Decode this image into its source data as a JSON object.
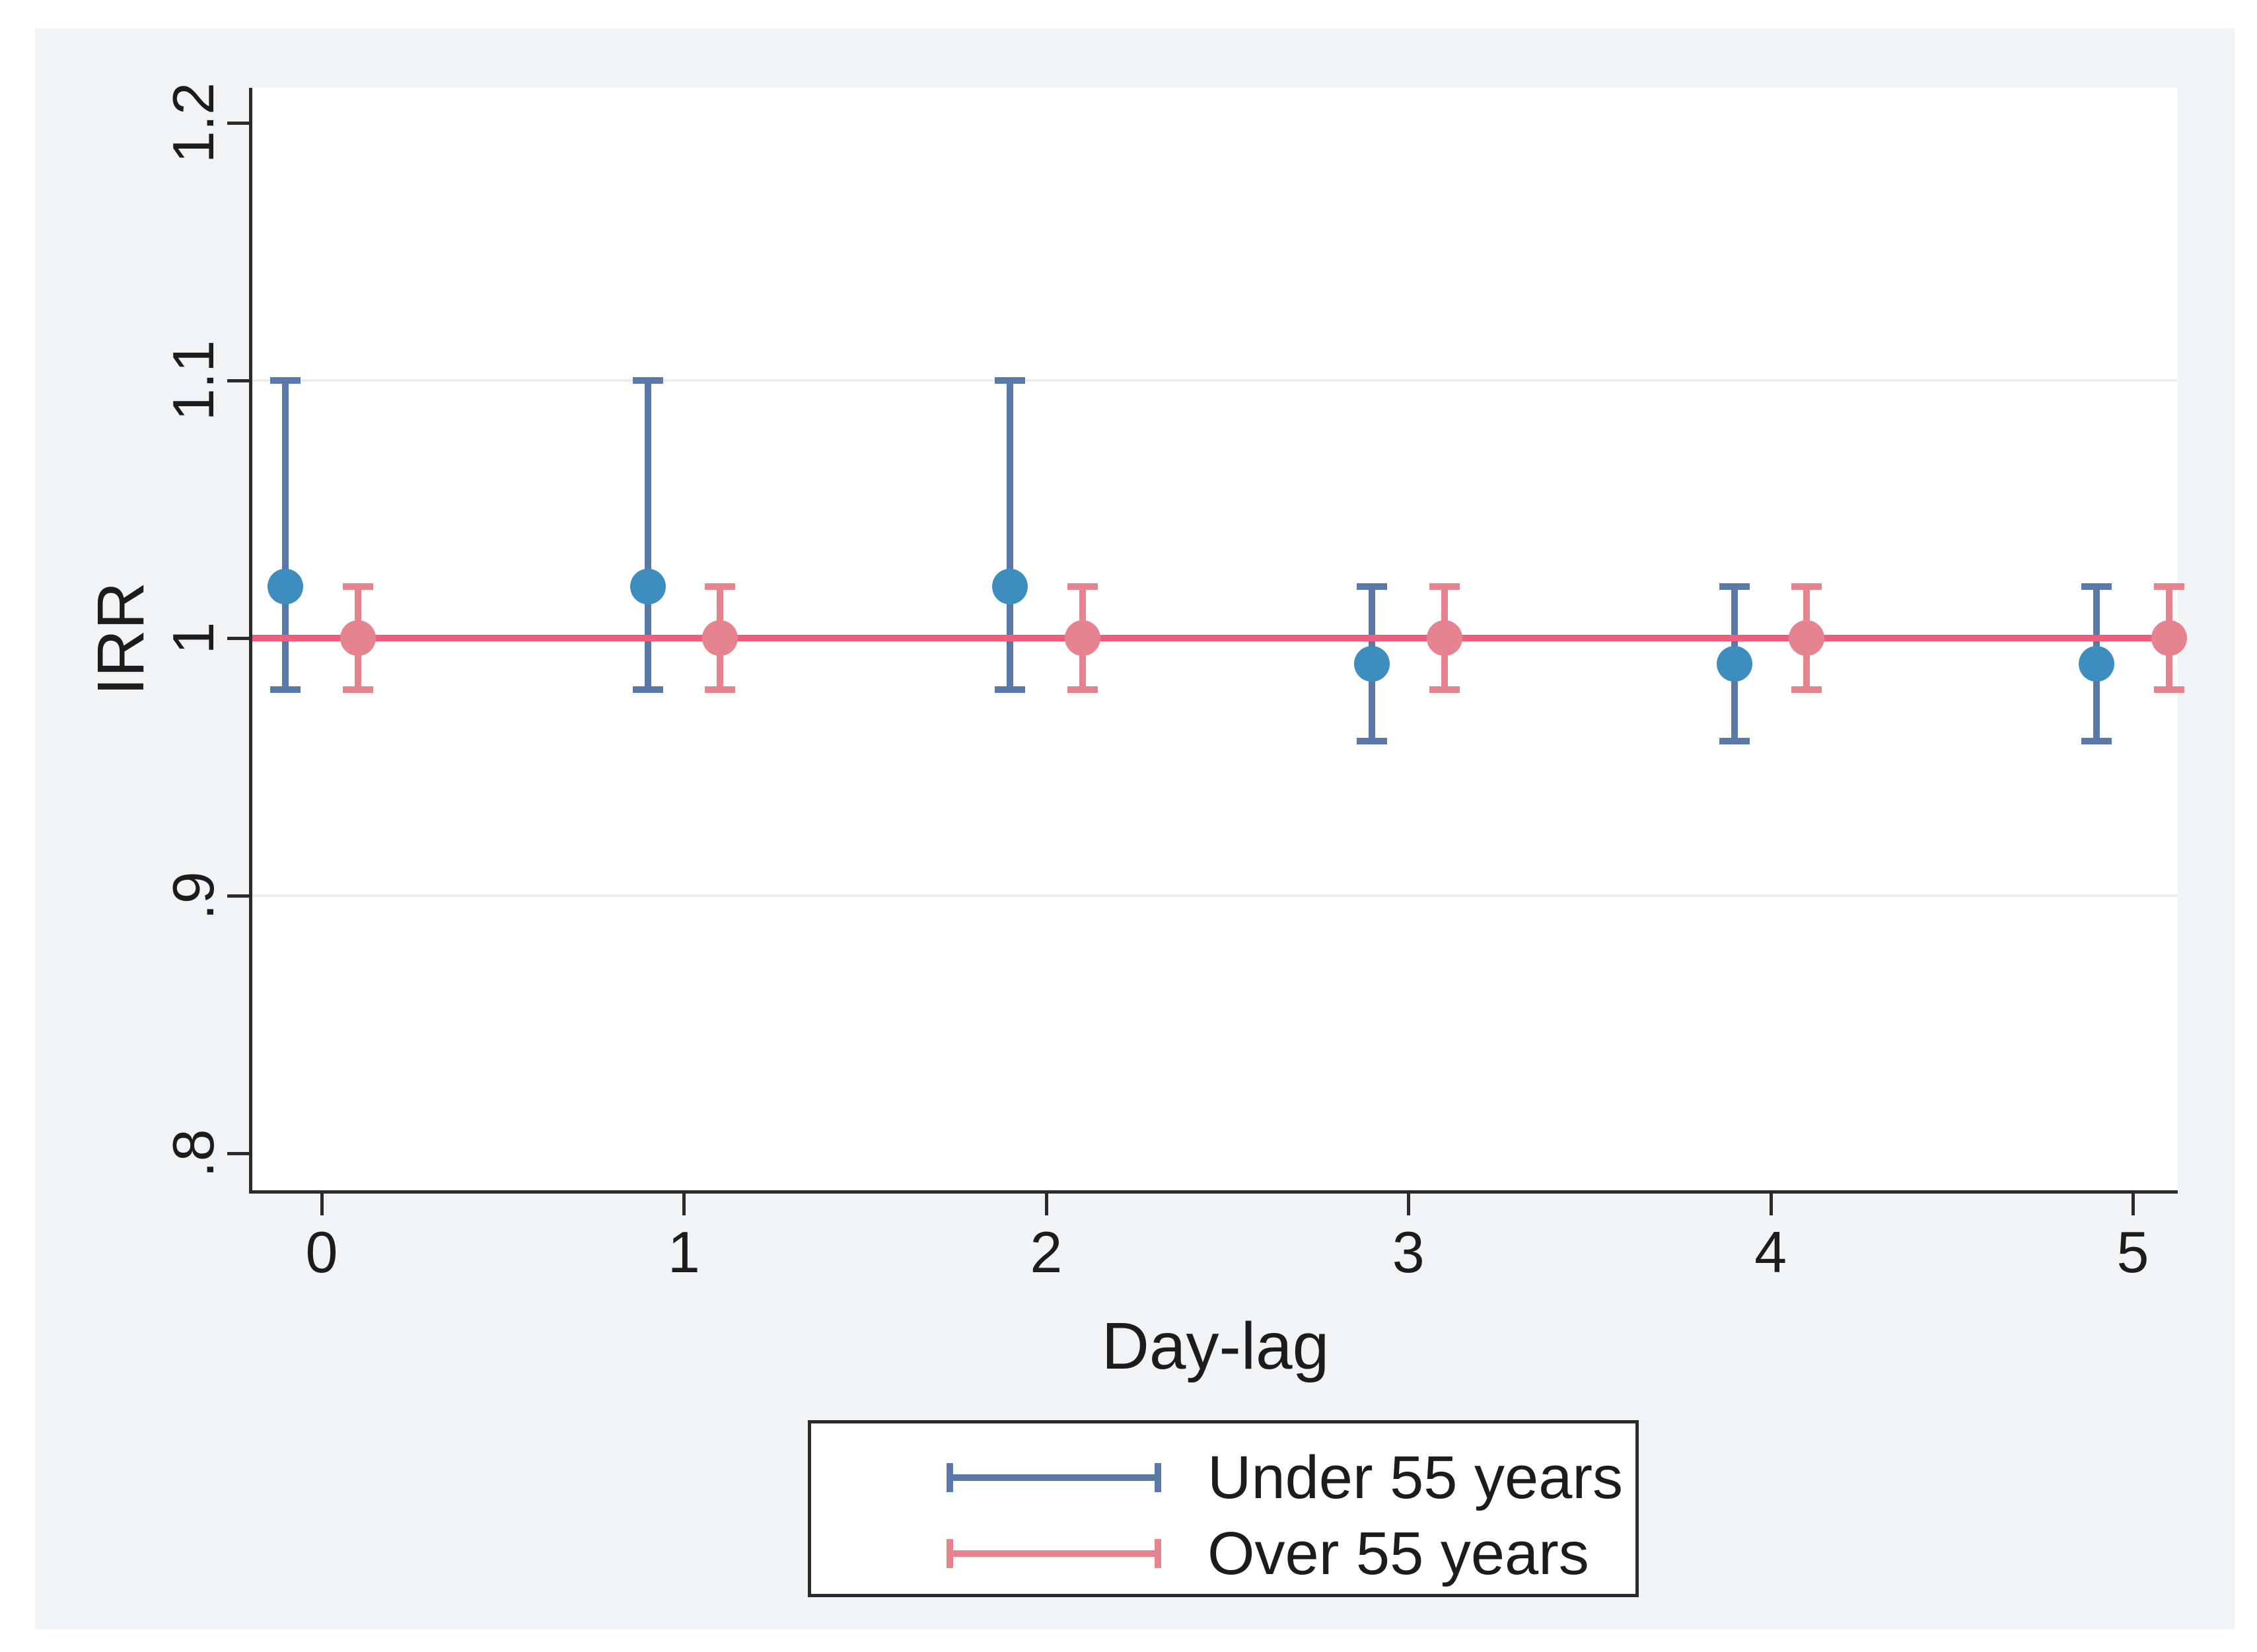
{
  "chart_data": {
    "type": "scatter",
    "subtype": "error-bar",
    "title": "",
    "xlabel": "Day-lag",
    "ylabel": "IRR",
    "x_ticks": [
      {
        "label": "0",
        "value": 0
      },
      {
        "label": "1",
        "value": 1
      },
      {
        "label": "2",
        "value": 2
      },
      {
        "label": "3",
        "value": 3
      },
      {
        "label": "4",
        "value": 4
      },
      {
        "label": "5",
        "value": 5
      }
    ],
    "y_ticks": [
      {
        "label": "1.2",
        "value": 1.2
      },
      {
        "label": "1.1",
        "value": 1.1
      },
      {
        "label": "1",
        "value": 1.0
      },
      {
        "label": ".9",
        "value": 0.9
      },
      {
        "label": ".8",
        "value": 0.8
      }
    ],
    "xlim": [
      -0.19,
      5.12
    ],
    "ylim": [
      0.786,
      1.214
    ],
    "grid": "horizontal-at-1.1-and-0.9",
    "gridline_values": [
      1.1,
      0.9
    ],
    "legend_position": "bottom-center-boxed",
    "ref_line": {
      "y": 1.0,
      "color": "#ef5e7c"
    },
    "series": [
      {
        "name": "Under 55 years",
        "marker_color": "#3d8dbe",
        "bar_color": "#5b79a8",
        "x_offset": -0.1,
        "points": [
          {
            "x": 0,
            "y": 1.02,
            "lo": 0.98,
            "hi": 1.1
          },
          {
            "x": 1,
            "y": 1.02,
            "lo": 0.98,
            "hi": 1.1
          },
          {
            "x": 2,
            "y": 1.02,
            "lo": 0.98,
            "hi": 1.1
          },
          {
            "x": 3,
            "y": 0.99,
            "lo": 0.96,
            "hi": 1.02
          },
          {
            "x": 4,
            "y": 0.99,
            "lo": 0.96,
            "hi": 1.02
          },
          {
            "x": 5,
            "y": 0.99,
            "lo": 0.96,
            "hi": 1.02
          }
        ]
      },
      {
        "name": "Over 55 years",
        "marker_color": "#e5838e",
        "bar_color": "#e5838e",
        "x_offset": 0.1,
        "points": [
          {
            "x": 0,
            "y": 1.0,
            "lo": 0.98,
            "hi": 1.02
          },
          {
            "x": 1,
            "y": 1.0,
            "lo": 0.98,
            "hi": 1.02
          },
          {
            "x": 2,
            "y": 1.0,
            "lo": 0.98,
            "hi": 1.02
          },
          {
            "x": 3,
            "y": 1.0,
            "lo": 0.98,
            "hi": 1.02
          },
          {
            "x": 4,
            "y": 1.0,
            "lo": 0.98,
            "hi": 1.02
          },
          {
            "x": 5,
            "y": 1.0,
            "lo": 0.98,
            "hi": 1.02
          }
        ]
      }
    ],
    "colors": {
      "figure_background": "#f1f4f7",
      "plot_background": "#ffffff",
      "axis": "#2b2b2b",
      "gridline": "#e9eef1",
      "text": "#1c1c1c"
    }
  }
}
